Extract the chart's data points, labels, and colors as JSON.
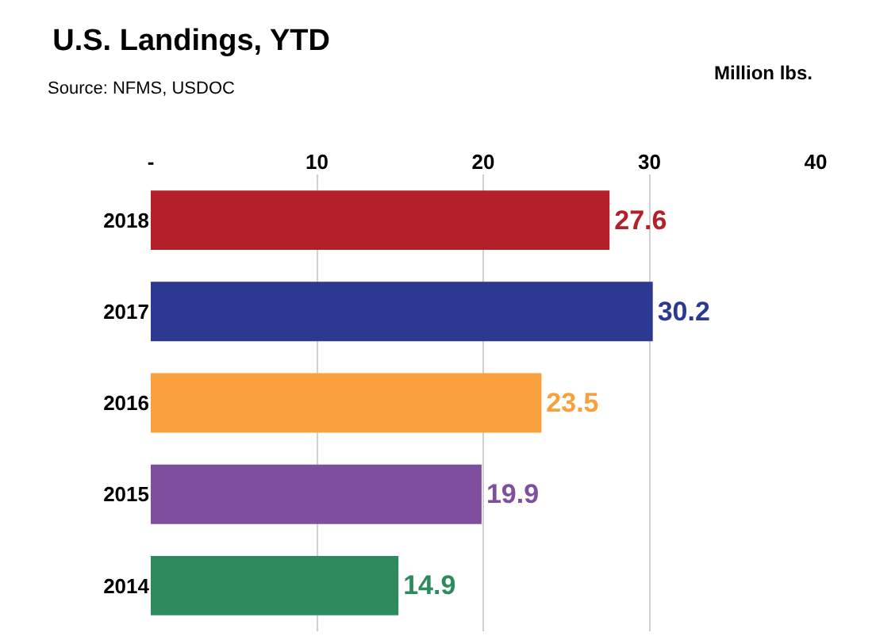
{
  "chart_data": {
    "type": "bar",
    "orientation": "horizontal",
    "title": "U.S. Landings, YTD",
    "subtitle": "Source: NFMS, USDOC",
    "annotations": [
      "Million lbs."
    ],
    "categories": [
      "2018",
      "2017",
      "2016",
      "2015",
      "2014"
    ],
    "values": [
      27.6,
      30.2,
      23.5,
      19.9,
      14.9
    ],
    "colors": [
      "#b3202a",
      "#2b3990",
      "#f7a03c",
      "#7f4f9f",
      "#2e8a5c"
    ],
    "xlim": [
      0,
      40
    ],
    "xticks": [
      {
        "value": 0,
        "label": "-"
      },
      10,
      20,
      30,
      40
    ],
    "grid": "x",
    "data_labels": true
  }
}
